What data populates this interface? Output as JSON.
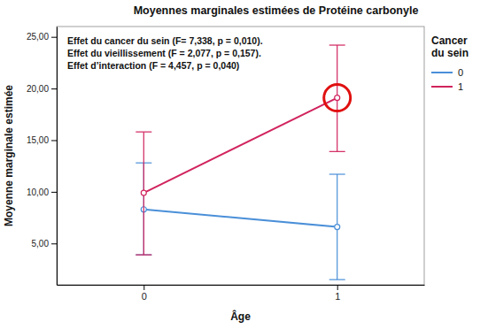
{
  "chart_data": {
    "type": "line",
    "title": "Moyennes marginales estimées de Protéine carbonyle",
    "x_label": "Âge",
    "y_label": "Moyenne marginale estimée",
    "legend_title": "Cancer du sein",
    "annotations": [
      "Effet du cancer du sein (F= 7,338, p = 0,010).",
      "Effet du vieillissement (F = 2,077, p = 0,157).",
      "Effet d’interaction (F = 4,457, p = 0,040)"
    ],
    "categories": [
      "0",
      "1"
    ],
    "series": [
      {
        "name": "0",
        "color": "#4a8fd8",
        "marker": "circle",
        "values": [
          8.3,
          6.6
        ],
        "lower": [
          3.9,
          1.5
        ],
        "upper": [
          12.8,
          11.7
        ]
      },
      {
        "name": "1",
        "color": "#d1245d",
        "marker": "circle",
        "values": [
          9.9,
          19.1
        ],
        "lower": [
          3.9,
          13.9
        ],
        "upper": [
          15.8,
          24.2
        ]
      }
    ],
    "ylim": [
      1,
      26
    ],
    "yticks": [
      {
        "value": 5,
        "label": "5,00"
      },
      {
        "value": 10,
        "label": "10,00"
      },
      {
        "value": 15,
        "label": "15,00"
      },
      {
        "value": 20,
        "label": "20,00"
      },
      {
        "value": 25,
        "label": "25,00"
      }
    ],
    "grid": false,
    "legend": "right"
  }
}
